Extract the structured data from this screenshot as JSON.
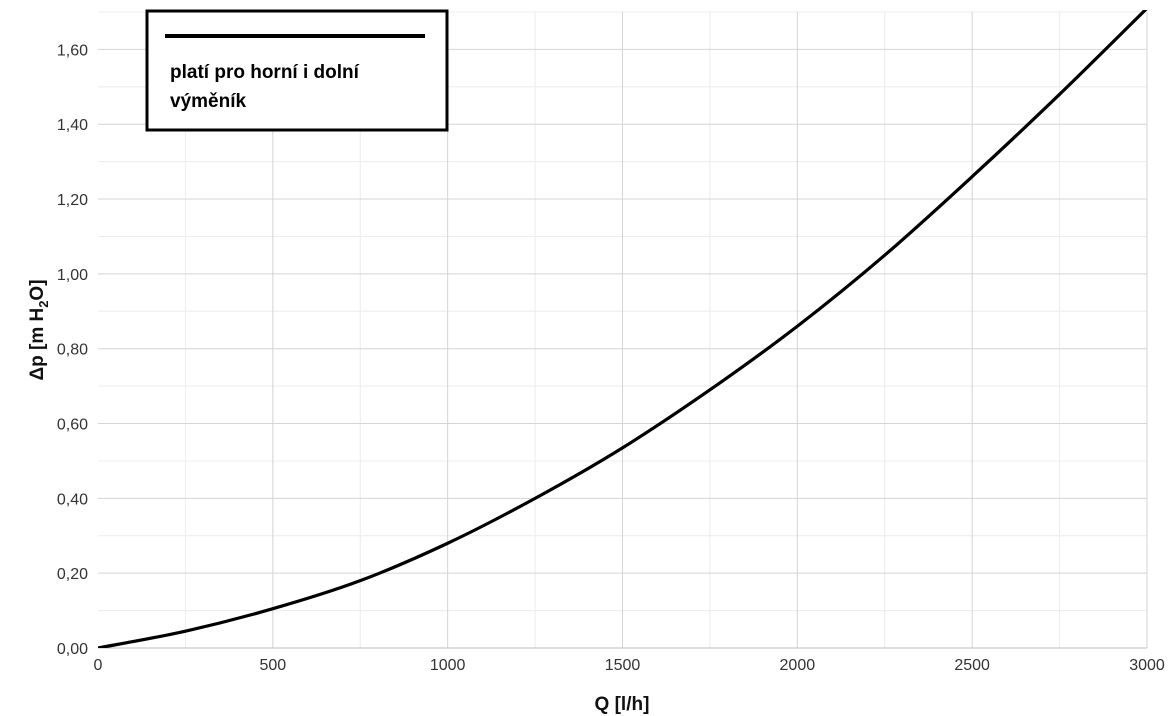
{
  "chart_data": {
    "type": "line",
    "xlabel": "Q [l/h]",
    "ylabel": {
      "prefix": "Δp [m H",
      "sub": "2",
      "suffix": "O]"
    },
    "xlim": [
      0,
      3000
    ],
    "ylim": [
      0,
      1.7
    ],
    "x_ticks": [
      0,
      500,
      1000,
      1500,
      2000,
      2500,
      3000
    ],
    "x_tick_labels": [
      "0",
      "500",
      "1000",
      "1500",
      "2000",
      "2500",
      "3000"
    ],
    "y_ticks": [
      0,
      0.2,
      0.4,
      0.6,
      0.8,
      1.0,
      1.2,
      1.4,
      1.6
    ],
    "y_tick_labels": [
      "0,00",
      "0,20",
      "0,40",
      "0,60",
      "0,80",
      "1,00",
      "1,20",
      "1,40",
      "1,60"
    ],
    "grid": true,
    "legend": {
      "placement": "top-left",
      "lines": [
        "platí pro horní i dolní",
        "výměník"
      ]
    },
    "series": [
      {
        "color": "#000000",
        "x": [
          0,
          250,
          500,
          750,
          1000,
          1250,
          1500,
          1750,
          2000,
          2250,
          2500,
          2750,
          3000
        ],
        "y": [
          0.0,
          0.045,
          0.105,
          0.18,
          0.28,
          0.4,
          0.535,
          0.69,
          0.86,
          1.05,
          1.26,
          1.48,
          1.71
        ]
      }
    ]
  }
}
